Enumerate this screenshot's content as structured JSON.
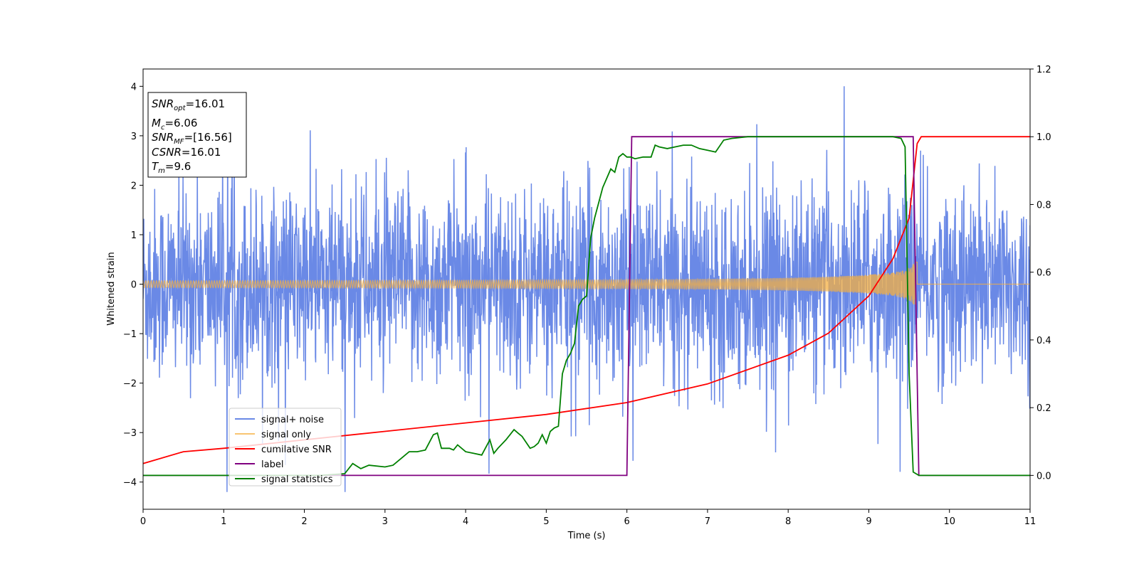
{
  "chart_data": {
    "type": "line",
    "xlabel": "Time (s)",
    "ylabel": "Whitened strain",
    "xlim": [
      0,
      11
    ],
    "ylim_left": [
      -4.55,
      4.35
    ],
    "ylim_right": [
      -0.1,
      1.2
    ],
    "xticks": [
      "0",
      "1",
      "2",
      "3",
      "4",
      "5",
      "6",
      "7",
      "8",
      "9",
      "10",
      "11"
    ],
    "yticks_left": [
      "−4",
      "−3",
      "−2",
      "−1",
      "0",
      "1",
      "2",
      "3",
      "4"
    ],
    "yticks_right": [
      "0.0",
      "0.2",
      "0.4",
      "0.6",
      "0.8",
      "1.0",
      "1.2"
    ],
    "grid": false,
    "legend_position": "lower-left",
    "stats_box": {
      "snr_opt": "=16.01",
      "mc": "=6.06",
      "snr_mf": "=[16.56]",
      "csnr": "=16.01",
      "tm": "=9.6"
    },
    "series": [
      {
        "name": "signal+ noise",
        "axis": "left",
        "color": "#6a89e6",
        "description_values": {
          "noise_envelope_typical": 1.7,
          "max_spike": 4.0,
          "min_spike": -4.2,
          "end_time": 11
        }
      },
      {
        "name": "signal only",
        "axis": "left",
        "color": "#f5b041",
        "chirp": {
          "start_time": 0,
          "merger_time": 9.6,
          "amplitude_start": 0.07,
          "amplitude_at_merger": 1.3
        }
      },
      {
        "name": "cumilative SNR",
        "axis": "right",
        "color": "#ff0000",
        "x": [
          0,
          0.5,
          1,
          2,
          3,
          4,
          5,
          6,
          7,
          8,
          8.5,
          9,
          9.3,
          9.5,
          9.6,
          9.65,
          11
        ],
        "y": [
          0.035,
          0.07,
          0.08,
          0.105,
          0.13,
          0.155,
          0.18,
          0.215,
          0.27,
          0.355,
          0.42,
          0.53,
          0.64,
          0.76,
          0.98,
          1.0,
          1.0
        ]
      },
      {
        "name": "label",
        "axis": "right",
        "color": "#800080",
        "x": [
          0,
          6.0,
          6.06,
          9.55,
          9.62,
          11
        ],
        "y": [
          0,
          0,
          1,
          1,
          0,
          0
        ]
      },
      {
        "name": "signal statistics",
        "axis": "right",
        "color": "#008000",
        "x": [
          0,
          2.2,
          2.5,
          2.6,
          2.7,
          2.8,
          3.0,
          3.1,
          3.2,
          3.3,
          3.4,
          3.5,
          3.6,
          3.65,
          3.7,
          3.8,
          3.85,
          3.9,
          4.0,
          4.1,
          4.2,
          4.3,
          4.35,
          4.4,
          4.5,
          4.6,
          4.65,
          4.7,
          4.8,
          4.85,
          4.9,
          4.95,
          5.0,
          5.05,
          5.1,
          5.15,
          5.2,
          5.25,
          5.3,
          5.35,
          5.4,
          5.45,
          5.5,
          5.55,
          5.6,
          5.7,
          5.8,
          5.85,
          5.9,
          5.95,
          6.0,
          6.05,
          6.1,
          6.2,
          6.3,
          6.35,
          6.4,
          6.5,
          6.6,
          6.7,
          6.8,
          6.9,
          7.0,
          7.1,
          7.2,
          7.3,
          7.5,
          7.7,
          7.8,
          8.0,
          8.5,
          9.0,
          9.3,
          9.4,
          9.45,
          9.5,
          9.55,
          9.62,
          9.7,
          11
        ],
        "y": [
          0.0,
          0.0,
          0.005,
          0.035,
          0.02,
          0.03,
          0.025,
          0.03,
          0.05,
          0.07,
          0.07,
          0.075,
          0.12,
          0.125,
          0.08,
          0.08,
          0.075,
          0.09,
          0.07,
          0.065,
          0.06,
          0.105,
          0.065,
          0.08,
          0.105,
          0.135,
          0.125,
          0.115,
          0.08,
          0.085,
          0.095,
          0.12,
          0.095,
          0.13,
          0.14,
          0.145,
          0.3,
          0.34,
          0.36,
          0.39,
          0.5,
          0.52,
          0.53,
          0.7,
          0.76,
          0.85,
          0.905,
          0.895,
          0.94,
          0.95,
          0.94,
          0.94,
          0.935,
          0.94,
          0.94,
          0.975,
          0.97,
          0.965,
          0.97,
          0.975,
          0.975,
          0.965,
          0.96,
          0.955,
          0.99,
          0.995,
          1.0,
          1.0,
          1.0,
          1.0,
          1.0,
          1.0,
          1.0,
          0.995,
          0.97,
          0.3,
          0.01,
          0.0,
          0.0,
          0.0
        ]
      }
    ]
  }
}
